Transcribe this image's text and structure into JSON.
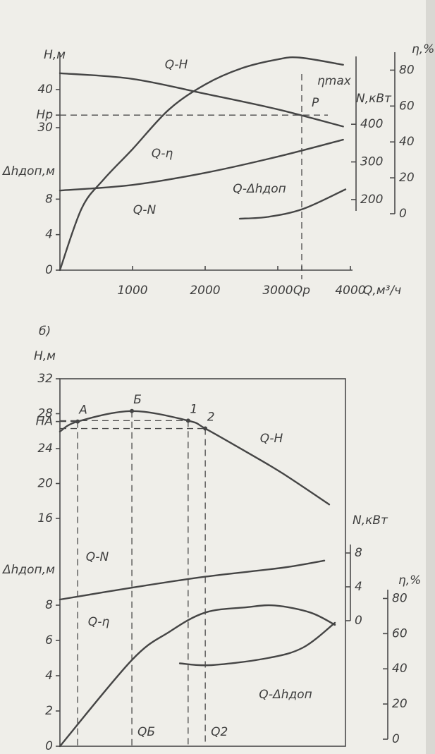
{
  "chart_data": [
    {
      "type": "line",
      "ylabel": "H,м",
      "y2label": "Δhдоп,м",
      "y3label": "N,кВт",
      "y4label": "η,%",
      "xlabel": "Q,м³/ч",
      "xlim": [
        0,
        4000
      ],
      "xticks": [
        1000,
        2000,
        3000,
        {
          "value": 3330,
          "label": "Qp"
        },
        4000
      ],
      "ylim": [
        20,
        50
      ],
      "yticks": [
        40,
        {
          "value": 33.3,
          "label": "Hp"
        },
        30
      ],
      "y2lim": [
        0,
        12
      ],
      "y2ticks": [
        8,
        4,
        0
      ],
      "y3lim": [
        170,
        580
      ],
      "y3ticks": [
        400,
        300,
        200
      ],
      "y4lim": [
        0,
        90
      ],
      "y4ticks": [
        80,
        60,
        40,
        20,
        0
      ],
      "series": [
        {
          "name": "Q-H",
          "axis": "y",
          "color": "#454545",
          "x": [
            0,
            1000,
            2000,
            3000,
            3900
          ],
          "values": [
            44.3,
            42.8,
            38.9,
            34.8,
            30.3
          ]
        },
        {
          "name": "Q-η",
          "axis": "y4",
          "color": "#454545",
          "x": [
            0,
            300,
            600,
            1000,
            1500,
            2000,
            2500,
            3000,
            3300,
            3900
          ],
          "values": [
            -31.4,
            3,
            19,
            36,
            58,
            72,
            81,
            86,
            87,
            83
          ]
        },
        {
          "name": "Q-N",
          "axis": "y3",
          "color": "#454545",
          "x": [
            0,
            1000,
            2000,
            3000,
            3900
          ],
          "values": [
            224,
            239,
            271,
            314,
            359
          ]
        },
        {
          "name": "Q-Δhдоп",
          "axis": "y2",
          "color": "#454545",
          "x": [
            2476,
            2864,
            3350,
            3932
          ],
          "values": [
            5.8,
            6.0,
            6.9,
            9.1
          ]
        }
      ],
      "annotations": [
        "ηmax",
        "P"
      ]
    },
    {
      "type": "line",
      "label": "б)",
      "ylabel": "H,м",
      "y2label": "Δhдоп,м",
      "y3label": "N,кВт",
      "y4label": "η,%",
      "xlim": [
        0,
        100
      ],
      "xticks": [
        {
          "value": 25.2,
          "label": "QБ"
        },
        {
          "value": 50.9,
          "label": "Q2"
        }
      ],
      "ylim": [
        16,
        32
      ],
      "yticks": [
        32,
        28,
        {
          "value": 27.1,
          "label": "HA"
        },
        24,
        20,
        16
      ],
      "y2lim": [
        0,
        8
      ],
      "y2ticks": [
        8,
        6,
        4,
        2,
        0
      ],
      "y3lim": [
        0,
        9
      ],
      "y3ticks": [
        8,
        4,
        0
      ],
      "y4lim": [
        0,
        85
      ],
      "y4ticks": [
        80,
        60,
        40,
        20,
        0
      ],
      "series": [
        {
          "name": "Q-H",
          "axis": "y",
          "color": "#454545",
          "x": [
            0,
            6.2,
            25.2,
            44.9,
            50.9,
            65.4,
            77.8,
            94.3
          ],
          "values": [
            25.95,
            27.1,
            28.3,
            27.2,
            26.3,
            23.6,
            21.2,
            17.6
          ]
        },
        {
          "name": "Q-N",
          "axis": "y3",
          "color": "#454545",
          "x": [
            0,
            25.2,
            50.9,
            77.8,
            92.6
          ],
          "values": [
            2.5,
            3.9,
            5.2,
            6.25,
            7.1
          ]
        },
        {
          "name": "Q-η",
          "axis": "y4",
          "color": "#454545",
          "x": [
            0,
            25.2,
            38.3,
            50.9,
            65.4,
            75.3,
            87.7,
            96.3
          ],
          "values": [
            -4,
            45,
            61,
            72,
            75,
            76,
            72,
            65
          ]
        },
        {
          "name": "Q-Δhдоп",
          "axis": "y2",
          "color": "#454545",
          "x": [
            42,
            53.1,
            72.8,
            85.2,
            96.3
          ],
          "values": [
            4.7,
            4.6,
            5.0,
            5.6,
            7.0
          ]
        }
      ],
      "points": [
        {
          "label": "A",
          "x": 6.2,
          "y": 27.1
        },
        {
          "label": "Б",
          "x": 25.2,
          "y": 28.3
        },
        {
          "label": "1",
          "x": 44.9,
          "y": 27.2
        },
        {
          "label": "2",
          "x": 50.9,
          "y": 26.3
        }
      ]
    }
  ]
}
